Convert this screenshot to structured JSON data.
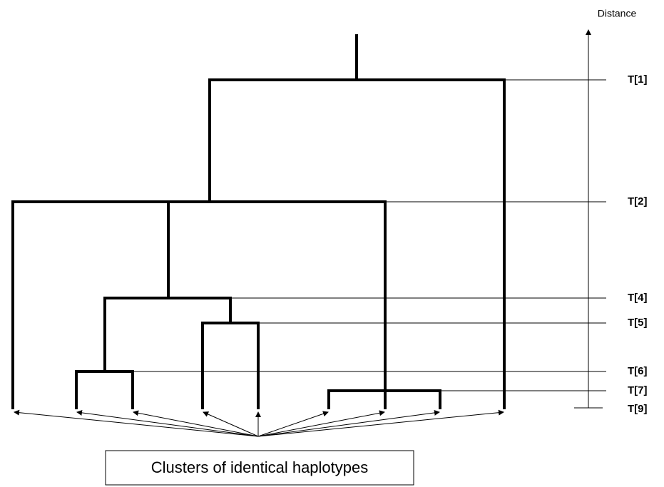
{
  "axis": {
    "label": "Distance"
  },
  "levels": [
    "T[1]",
    "T[2]",
    "T[4]",
    "T[5]",
    "T[6]",
    "T[7]",
    "T[9]"
  ],
  "caption": "Clusters of identical haplotypes"
}
